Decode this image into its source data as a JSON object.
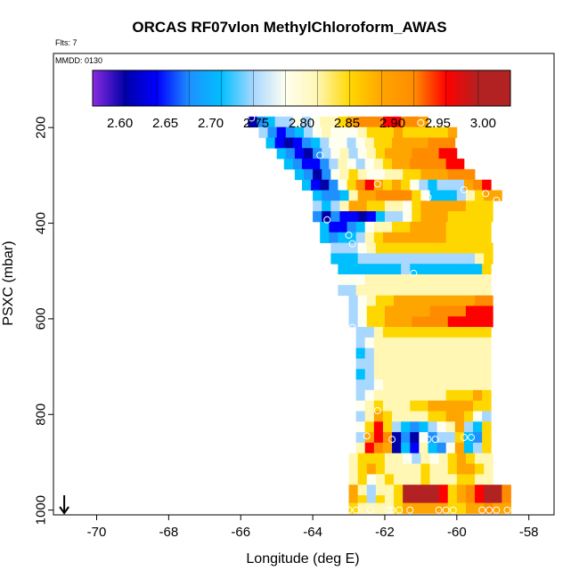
{
  "chart_data": {
    "type": "heatmap",
    "title": "ORCAS RF07vlon MethylChloroform_AWAS",
    "flts_label": "Flts: 7",
    "mmdd_label": "MMDD: 0130",
    "xlabel": "Longitude (deg E)",
    "ylabel": "PSXC (mbar)",
    "xlim": [
      -71.2,
      -57.3
    ],
    "ylim": [
      1010,
      45
    ],
    "xticks": [
      -70,
      -68,
      -66,
      -64,
      -62,
      -60,
      -58
    ],
    "yticks": [
      200,
      400,
      600,
      800,
      1000
    ],
    "colorbar": {
      "range": [
        2.57,
        3.03
      ],
      "ticks": [
        "2.60",
        "2.65",
        "2.70",
        "2.75",
        "2.80",
        "2.85",
        "2.90",
        "2.95",
        "3.00"
      ],
      "colors": [
        "#8a2be2",
        "#0000a8",
        "#0000ff",
        "#1e90ff",
        "#00bfff",
        "#a8d8ff",
        "#fffff0",
        "#fff7b3",
        "#ffd700",
        "#ffa500",
        "#ff8c00",
        "#ff0000",
        "#b22222"
      ]
    },
    "cell_width_deg": 0.25,
    "cell_height_mbar": 22,
    "rows": [
      {
        "p": 188,
        "x0": -65.8,
        "v": [
          2.63,
          2.7,
          2.74,
          2.76,
          2.78,
          2.8,
          2.78,
          2.8,
          2.82,
          2.84,
          2.86,
          2.9,
          2.93,
          2.94,
          2.95,
          2.96,
          2.97,
          2.95,
          2.93,
          2.91
        ]
      },
      {
        "p": 210,
        "x0": -65.5,
        "v": [
          2.77,
          2.7,
          2.66,
          2.68,
          2.73,
          2.78,
          2.8,
          2.82,
          2.81,
          2.79,
          2.8,
          2.84,
          2.86,
          2.87,
          2.88,
          2.89,
          2.88,
          2.87,
          2.86,
          2.88,
          2.88,
          2.89
        ]
      },
      {
        "p": 232,
        "x0": -65.3,
        "v": [
          2.72,
          2.66,
          2.63,
          2.66,
          2.7,
          2.74,
          2.78,
          2.8,
          2.79,
          2.78,
          2.79,
          2.82,
          2.86,
          2.88,
          2.89,
          2.9,
          2.91,
          2.92,
          2.93,
          2.93,
          2.94
        ]
      },
      {
        "p": 254,
        "x0": -65.0,
        "v": [
          2.74,
          2.7,
          2.66,
          2.64,
          2.69,
          2.76,
          2.8,
          2.82,
          2.78,
          2.79,
          2.83,
          2.86,
          2.89,
          2.91,
          2.92,
          2.93,
          2.94,
          2.95,
          2.96,
          2.97
        ]
      },
      {
        "p": 276,
        "x0": -64.8,
        "v": [
          2.74,
          2.7,
          2.66,
          2.66,
          2.7,
          2.78,
          2.83,
          2.81,
          2.77,
          2.79,
          2.83,
          2.87,
          2.9,
          2.92,
          2.93,
          2.93,
          2.94,
          2.95,
          2.96,
          2.96
        ]
      },
      {
        "p": 298,
        "x0": -64.5,
        "v": [
          2.74,
          2.7,
          2.64,
          2.68,
          2.79,
          2.84,
          2.88,
          2.84,
          2.8,
          2.8,
          2.82,
          2.84,
          2.86,
          2.88,
          2.89,
          2.9,
          2.92,
          2.93,
          2.94,
          2.95
        ]
      },
      {
        "p": 320,
        "x0": -64.3,
        "v": [
          2.72,
          2.66,
          2.62,
          2.7,
          2.8,
          2.88,
          2.93,
          2.99,
          2.9,
          2.88,
          2.89,
          2.87,
          2.8,
          2.75,
          2.74,
          2.75,
          2.76,
          2.78,
          2.9,
          2.93,
          2.96
        ]
      },
      {
        "p": 342,
        "x0": -64.0,
        "v": [
          2.74,
          2.7,
          2.68,
          2.72,
          2.84,
          2.9,
          2.91,
          2.93,
          2.94,
          2.95,
          2.93,
          2.88,
          2.8,
          2.74,
          2.72,
          2.73,
          2.76,
          2.84,
          2.88,
          2.9,
          2.92
        ]
      },
      {
        "p": 364,
        "x0": -64.0,
        "v": [
          2.76,
          2.72,
          2.78,
          2.85,
          2.89,
          2.9,
          2.88,
          2.86,
          2.84,
          2.82,
          2.8,
          2.88,
          2.9,
          2.91,
          2.9,
          2.9,
          2.89,
          2.88,
          2.88,
          2.88
        ]
      },
      {
        "p": 386,
        "x0": -64.0,
        "v": [
          2.7,
          2.62,
          2.68,
          2.66,
          2.66,
          2.64,
          2.66,
          2.72,
          2.76,
          2.78,
          2.8,
          2.88,
          2.9,
          2.9,
          2.89,
          2.88,
          2.88,
          2.88,
          2.88,
          2.88
        ]
      },
      {
        "p": 408,
        "x0": -63.8,
        "v": [
          2.72,
          2.66,
          2.66,
          2.7,
          2.74,
          2.8,
          2.82,
          2.84,
          2.86,
          2.88,
          2.89,
          2.89,
          2.89,
          2.89,
          2.88,
          2.88,
          2.88,
          2.88,
          2.88
        ]
      },
      {
        "p": 430,
        "x0": -63.8,
        "v": [
          2.74,
          2.7,
          2.72,
          2.74,
          2.76,
          2.85,
          2.88,
          2.89,
          2.89,
          2.89,
          2.89,
          2.89,
          2.89,
          2.89,
          2.88,
          2.88,
          2.88,
          2.88,
          2.88
        ]
      },
      {
        "p": 452,
        "x0": -63.5,
        "v": [
          2.78,
          2.76,
          2.78,
          2.8,
          2.83,
          2.86,
          2.88,
          2.88,
          2.88,
          2.88,
          2.88,
          2.88,
          2.88,
          2.88,
          2.88,
          2.88,
          2.88,
          2.88
        ]
      },
      {
        "p": 474,
        "x0": -63.5,
        "v": [
          2.74,
          2.74,
          2.74,
          2.75,
          2.76,
          2.76,
          2.77,
          2.76,
          2.76,
          2.75,
          2.75,
          2.75,
          2.75,
          2.75,
          2.75,
          2.76,
          2.84,
          2.88
        ]
      },
      {
        "p": 496,
        "x0": -63.3,
        "v": [
          2.74,
          2.74,
          2.74,
          2.74,
          2.74,
          2.74,
          2.74,
          2.75,
          2.74,
          2.74,
          2.74,
          2.74,
          2.74,
          2.74,
          2.74,
          2.74,
          2.87
        ]
      },
      {
        "p": 518,
        "x0": -63.3,
        "v": [
          2.79,
          2.8,
          2.81,
          2.82,
          2.82,
          2.82,
          2.82,
          2.82,
          2.82,
          2.82,
          2.82,
          2.82,
          2.82,
          2.82,
          2.82,
          2.82,
          2.82
        ]
      },
      {
        "p": 540,
        "x0": -63.3,
        "v": [
          2.76,
          2.78,
          2.83,
          2.84,
          2.84,
          2.84,
          2.84,
          2.84,
          2.84,
          2.84,
          2.84,
          2.84,
          2.84,
          2.84,
          2.84,
          2.84,
          2.84
        ]
      },
      {
        "p": 562,
        "x0": -63.0,
        "v": [
          2.78,
          2.8,
          2.84,
          2.86,
          2.88,
          2.89,
          2.9,
          2.9,
          2.9,
          2.9,
          2.9,
          2.91,
          2.91,
          2.92,
          2.93,
          2.94
        ]
      },
      {
        "p": 584,
        "x0": -63.0,
        "v": [
          2.77,
          2.8,
          2.86,
          2.88,
          2.89,
          2.9,
          2.91,
          2.92,
          2.92,
          2.93,
          2.93,
          2.94,
          2.95,
          2.96,
          2.96,
          2.97
        ]
      },
      {
        "p": 606,
        "x0": -63.0,
        "v": [
          2.78,
          2.8,
          2.86,
          2.88,
          2.9,
          2.91,
          2.92,
          2.93,
          2.94,
          2.94,
          2.95,
          2.96,
          2.96,
          2.97,
          2.97,
          2.97
        ]
      },
      {
        "p": 628,
        "x0": -62.8,
        "v": [
          2.76,
          2.78,
          2.84,
          2.86,
          2.87,
          2.88,
          2.88,
          2.88,
          2.88,
          2.88,
          2.88,
          2.88,
          2.88,
          2.88,
          2.88
        ]
      },
      {
        "p": 650,
        "x0": -62.8,
        "v": [
          2.78,
          2.8,
          2.82,
          2.84,
          2.84,
          2.84,
          2.84,
          2.84,
          2.84,
          2.84,
          2.84,
          2.84,
          2.84,
          2.84,
          2.84
        ]
      },
      {
        "p": 672,
        "x0": -62.8,
        "v": [
          2.74,
          2.76,
          2.82,
          2.82,
          2.82,
          2.82,
          2.82,
          2.82,
          2.82,
          2.82,
          2.82,
          2.82,
          2.82,
          2.82,
          2.82
        ]
      },
      {
        "p": 694,
        "x0": -62.8,
        "v": [
          2.78,
          2.78,
          2.82,
          2.82,
          2.82,
          2.82,
          2.82,
          2.82,
          2.82,
          2.82,
          2.82,
          2.82,
          2.82,
          2.82,
          2.82
        ]
      },
      {
        "p": 716,
        "x0": -62.8,
        "v": [
          2.74,
          2.76,
          2.82,
          2.82,
          2.82,
          2.82,
          2.82,
          2.82,
          2.82,
          2.82,
          2.82,
          2.82,
          2.82,
          2.82,
          2.82
        ]
      },
      {
        "p": 738,
        "x0": -62.8,
        "v": [
          2.76,
          2.78,
          2.8,
          2.84,
          2.84,
          2.84,
          2.84,
          2.84,
          2.84,
          2.84,
          2.84,
          2.84,
          2.84,
          2.84,
          2.84
        ]
      },
      {
        "p": 760,
        "x0": -62.8,
        "v": [
          2.78,
          2.8,
          2.82,
          2.84,
          2.85,
          2.85,
          2.85,
          2.85,
          2.85,
          2.85,
          2.86,
          2.88,
          2.88,
          2.9,
          2.88
        ]
      },
      {
        "p": 782,
        "x0": -62.8,
        "v": [
          2.8,
          2.82,
          2.86,
          2.84,
          2.82,
          2.84,
          2.86,
          2.88,
          2.89,
          2.9,
          2.91,
          2.92,
          2.9,
          2.88,
          2.86
        ]
      },
      {
        "p": 804,
        "x0": -62.8,
        "v": [
          2.78,
          2.82,
          2.9,
          2.86,
          2.84,
          2.82,
          2.84,
          2.85,
          2.86,
          2.88,
          2.89,
          2.9,
          2.88,
          2.8,
          2.78
        ]
      },
      {
        "p": 826,
        "x0": -62.8,
        "v": [
          2.8,
          2.87,
          2.97,
          2.86,
          2.78,
          2.74,
          2.7,
          2.74,
          2.78,
          2.8,
          2.84,
          2.9,
          2.76,
          2.72,
          2.86
        ]
      },
      {
        "p": 848,
        "x0": -62.8,
        "v": [
          2.78,
          2.9,
          2.99,
          2.93,
          2.63,
          2.68,
          2.62,
          2.8,
          2.7,
          2.76,
          2.78,
          2.88,
          2.74,
          2.7,
          2.86
        ]
      },
      {
        "p": 870,
        "x0": -62.8,
        "v": [
          2.83,
          2.97,
          2.95,
          2.9,
          2.64,
          2.72,
          2.66,
          2.82,
          2.74,
          2.7,
          2.8,
          2.9,
          2.72,
          2.76,
          2.88
        ]
      },
      {
        "p": 892,
        "x0": -63.0,
        "v": [
          2.82,
          2.86,
          2.88,
          2.86,
          2.84,
          2.82,
          2.8,
          2.78,
          2.82,
          2.8,
          2.82,
          2.88,
          2.92,
          2.86,
          2.84,
          2.82
        ]
      },
      {
        "p": 914,
        "x0": -63.0,
        "v": [
          2.84,
          2.88,
          2.9,
          2.86,
          2.84,
          2.82,
          2.82,
          2.82,
          2.86,
          2.84,
          2.82,
          2.86,
          2.9,
          2.9,
          2.86,
          2.84
        ]
      },
      {
        "p": 936,
        "x0": -63.0,
        "v": [
          2.84,
          2.86,
          2.8,
          2.82,
          2.86,
          2.84,
          2.82,
          2.84,
          2.86,
          2.84,
          2.82,
          2.84,
          2.88,
          2.86,
          2.84,
          2.82
        ]
      },
      {
        "p": 958,
        "x0": -63.0,
        "v": [
          2.9,
          2.84,
          2.76,
          2.82,
          2.84,
          2.88,
          3.01,
          3.02,
          3.02,
          3.02,
          2.96,
          2.88,
          2.9,
          2.94,
          2.98,
          3.02,
          3.01,
          2.93
        ]
      },
      {
        "p": 980,
        "x0": -63.0,
        "v": [
          2.92,
          2.86,
          2.78,
          2.86,
          2.84,
          2.88,
          3.02,
          3.02,
          3.02,
          3.02,
          2.96,
          2.88,
          2.9,
          2.94,
          2.98,
          3.02,
          3.01,
          2.93
        ]
      },
      {
        "p": 996,
        "x0": -63.0,
        "v": [
          2.88,
          2.84,
          2.82,
          2.84,
          2.84,
          2.86,
          2.92,
          2.92,
          2.92,
          2.92,
          2.9,
          2.86,
          2.88,
          2.9,
          2.92,
          2.94,
          2.92,
          2.9
        ]
      }
    ],
    "points": [
      [
        -65.7,
        180
      ],
      [
        -62.9,
        214
      ],
      [
        -63.8,
        258
      ],
      [
        -62.2,
        318
      ],
      [
        -61.0,
        190
      ],
      [
        -60.8,
        346
      ],
      [
        -59.8,
        330
      ],
      [
        -59.2,
        338
      ],
      [
        -58.9,
        352
      ],
      [
        -58.2,
        256
      ],
      [
        -63.6,
        393
      ],
      [
        -63.0,
        425
      ],
      [
        -62.9,
        443
      ],
      [
        -61.2,
        505
      ],
      [
        -58.8,
        495
      ],
      [
        -58.6,
        472
      ],
      [
        -63.4,
        588
      ],
      [
        -62.9,
        618
      ],
      [
        -58.7,
        624
      ],
      [
        -62.2,
        792
      ],
      [
        -63.0,
        806
      ],
      [
        -62.5,
        845
      ],
      [
        -61.8,
        852
      ],
      [
        -60.8,
        852
      ],
      [
        -60.6,
        852
      ],
      [
        -59.8,
        848
      ],
      [
        -59.6,
        848
      ],
      [
        -58.8,
        815
      ],
      [
        -58.7,
        850
      ],
      [
        -63.0,
        1000
      ],
      [
        -62.8,
        1000
      ],
      [
        -62.4,
        1000
      ],
      [
        -61.9,
        1000
      ],
      [
        -61.8,
        1000
      ],
      [
        -61.6,
        1000
      ],
      [
        -61.3,
        1000
      ],
      [
        -60.5,
        1000
      ],
      [
        -60.3,
        1000
      ],
      [
        -60.1,
        1000
      ],
      [
        -59.3,
        1000
      ],
      [
        -59.1,
        1000
      ],
      [
        -58.9,
        1000
      ],
      [
        -58.6,
        1000
      ],
      [
        -58.3,
        992
      ],
      [
        -58.1,
        988
      ]
    ],
    "arrow_x": -70.9
  }
}
